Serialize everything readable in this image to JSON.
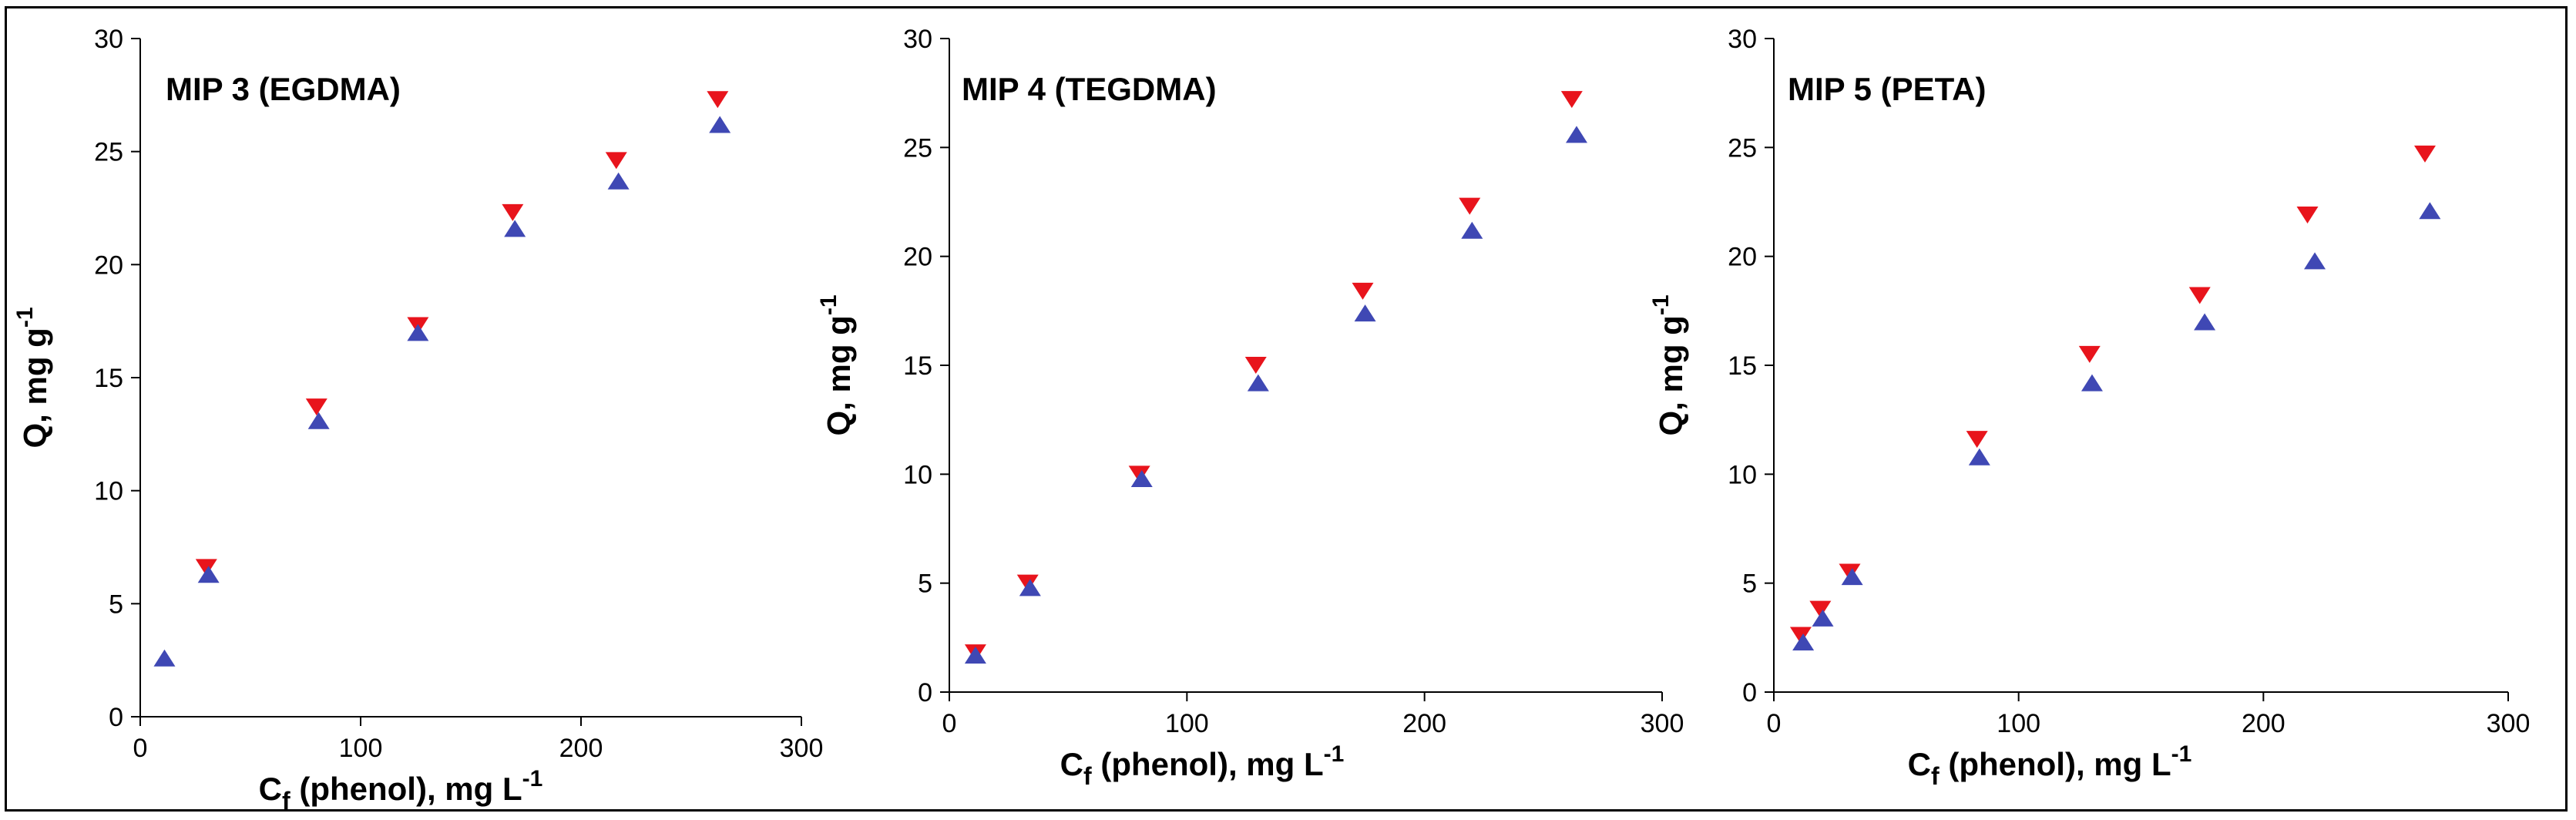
{
  "chart_data": [
    {
      "type": "scatter",
      "title": "MIP 3 (EGDMA)",
      "xlabel": {
        "main": "C",
        "sub": "f",
        "rest": " (phenol), mg L",
        "sup": "-1"
      },
      "ylabel": {
        "main": "Q, mg g",
        "sup": "-1"
      },
      "xlim": [
        0,
        300
      ],
      "ylim": [
        0,
        30
      ],
      "xticks": [
        0,
        100,
        200,
        300
      ],
      "yticks": [
        0,
        5,
        10,
        15,
        20,
        25,
        30
      ],
      "grid": false,
      "series": [
        {
          "marker": "triangle-down",
          "color": "#e8141c",
          "points": [
            [
              30,
              6.6
            ],
            [
              80,
              13.7
            ],
            [
              126,
              17.3
            ],
            [
              169,
              22.3
            ],
            [
              216,
              24.6
            ],
            [
              262,
              27.3
            ]
          ]
        },
        {
          "marker": "triangle-up",
          "color": "#3f48b4",
          "points": [
            [
              11,
              2.6
            ],
            [
              31,
              6.3
            ],
            [
              81,
              13.1
            ],
            [
              126,
              17.0
            ],
            [
              170,
              21.6
            ],
            [
              217,
              23.7
            ],
            [
              263,
              26.2
            ]
          ]
        }
      ]
    },
    {
      "type": "scatter",
      "title": "MIP 4 (TEGDMA)",
      "xlabel": {
        "main": "C",
        "sub": "f",
        "rest": " (phenol), mg L",
        "sup": "-1"
      },
      "ylabel": {
        "main": "Q, mg g",
        "sup": "-1"
      },
      "xlim": [
        0,
        300
      ],
      "ylim": [
        0,
        30
      ],
      "xticks": [
        0,
        100,
        200,
        300
      ],
      "yticks": [
        0,
        5,
        10,
        15,
        20,
        25,
        30
      ],
      "grid": false,
      "series": [
        {
          "marker": "triangle-down",
          "color": "#e8141c",
          "points": [
            [
              11,
              1.8
            ],
            [
              33,
              5.0
            ],
            [
              80,
              10.0
            ],
            [
              129,
              15.0
            ],
            [
              174,
              18.4
            ],
            [
              219,
              22.3
            ],
            [
              262,
              27.2
            ]
          ]
        },
        {
          "marker": "triangle-up",
          "color": "#3f48b4",
          "points": [
            [
              11,
              1.7
            ],
            [
              34,
              4.8
            ],
            [
              81,
              9.8
            ],
            [
              130,
              14.2
            ],
            [
              175,
              17.4
            ],
            [
              220,
              21.2
            ],
            [
              264,
              25.6
            ]
          ]
        }
      ]
    },
    {
      "type": "scatter",
      "title": "MIP 5 (PETA)",
      "xlabel": {
        "main": "C",
        "sub": "f",
        "rest": " (phenol), mg L",
        "sup": "-1"
      },
      "ylabel": {
        "main": "Q, mg g",
        "sup": "-1"
      },
      "xlim": [
        0,
        300
      ],
      "ylim": [
        0,
        30
      ],
      "xticks": [
        0,
        100,
        200,
        300
      ],
      "yticks": [
        0,
        5,
        10,
        15,
        20,
        25,
        30
      ],
      "grid": false,
      "series": [
        {
          "marker": "triangle-down",
          "color": "#e8141c",
          "points": [
            [
              11,
              2.6
            ],
            [
              19,
              3.8
            ],
            [
              31,
              5.5
            ],
            [
              83,
              11.6
            ],
            [
              129,
              15.5
            ],
            [
              174,
              18.2
            ],
            [
              218,
              21.9
            ],
            [
              266,
              24.7
            ]
          ]
        },
        {
          "marker": "triangle-up",
          "color": "#3f48b4",
          "points": [
            [
              12,
              2.3
            ],
            [
              20,
              3.4
            ],
            [
              32,
              5.3
            ],
            [
              84,
              10.8
            ],
            [
              130,
              14.2
            ],
            [
              176,
              17.0
            ],
            [
              221,
              19.8
            ],
            [
              268,
              22.1
            ]
          ]
        }
      ]
    }
  ]
}
